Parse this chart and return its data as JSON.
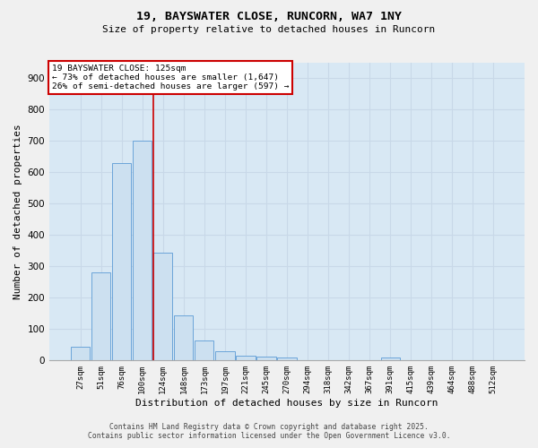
{
  "title1": "19, BAYSWATER CLOSE, RUNCORN, WA7 1NY",
  "title2": "Size of property relative to detached houses in Runcorn",
  "xlabel": "Distribution of detached houses by size in Runcorn",
  "ylabel": "Number of detached properties",
  "footnote1": "Contains HM Land Registry data © Crown copyright and database right 2025.",
  "footnote2": "Contains public sector information licensed under the Open Government Licence v3.0.",
  "bar_labels": [
    "27sqm",
    "51sqm",
    "76sqm",
    "100sqm",
    "124sqm",
    "148sqm",
    "173sqm",
    "197sqm",
    "221sqm",
    "245sqm",
    "270sqm",
    "294sqm",
    "318sqm",
    "342sqm",
    "367sqm",
    "391sqm",
    "415sqm",
    "439sqm",
    "464sqm",
    "488sqm",
    "512sqm"
  ],
  "bar_values": [
    43,
    280,
    630,
    700,
    345,
    145,
    65,
    30,
    15,
    12,
    10,
    0,
    0,
    0,
    0,
    9,
    0,
    0,
    0,
    0,
    0
  ],
  "bar_color": "#cce0f0",
  "bar_edge_color": "#5b9bd5",
  "grid_color": "#c8d8e8",
  "bg_color": "#d8e8f4",
  "fig_color": "#f0f0f0",
  "vline_color": "#cc0000",
  "vline_x": 3.55,
  "annotation_title": "19 BAYSWATER CLOSE: 125sqm",
  "annotation_line1": "← 73% of detached houses are smaller (1,647)",
  "annotation_line2": "26% of semi-detached houses are larger (597) →",
  "annotation_box_color": "#cc0000",
  "ylim": [
    0,
    950
  ],
  "yticks": [
    0,
    100,
    200,
    300,
    400,
    500,
    600,
    700,
    800,
    900
  ]
}
